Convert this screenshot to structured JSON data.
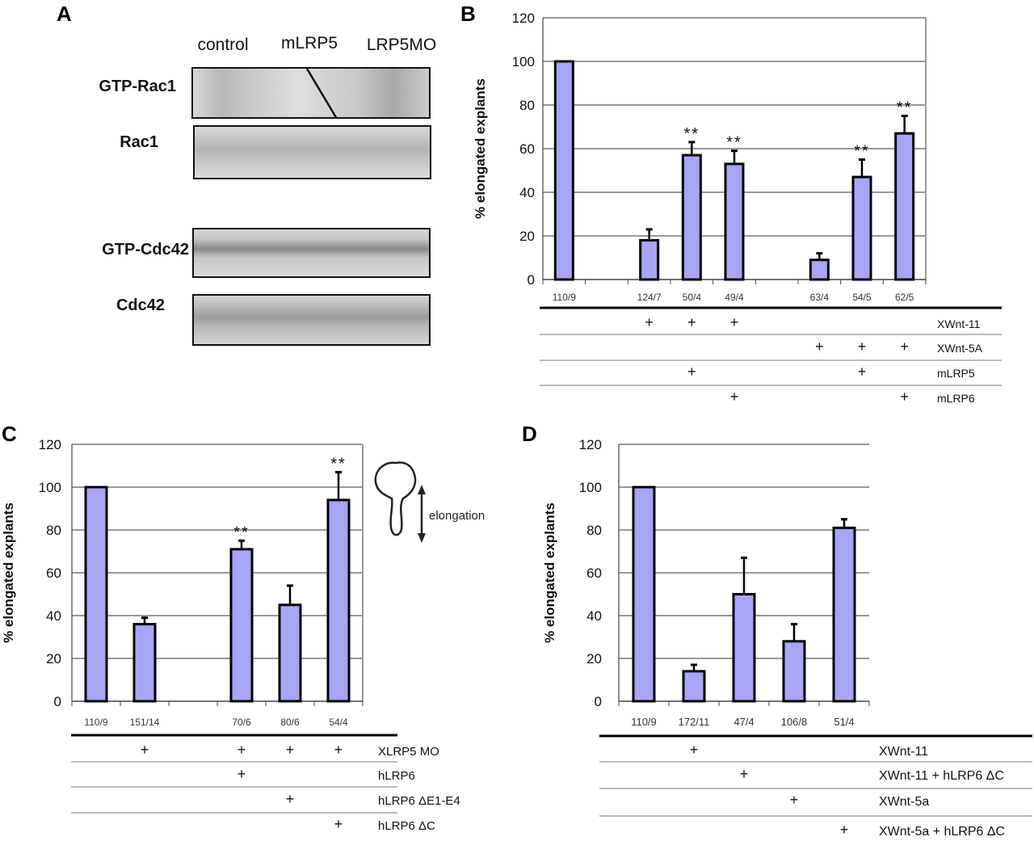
{
  "panels": {
    "a": "A",
    "b": "B",
    "c": "C",
    "d": "D"
  },
  "blot": {
    "columns": [
      "control",
      "mLRP5",
      "LRP5MO"
    ],
    "rows": [
      "GTP-Rac1",
      "Rac1",
      "GTP-Cdc42",
      "Cdc42"
    ]
  },
  "schematic": {
    "label": "elongation"
  },
  "colors": {
    "bar_fill": "#a6a6f5",
    "bar_stroke": "#000000",
    "grid": "#333333",
    "frame": "#999999",
    "table_rule": "#000000",
    "table_sep": "#bbbbbb"
  },
  "chart_data": [
    {
      "panel": "B",
      "type": "bar",
      "ylabel": "% elongated explants",
      "ylim": [
        0,
        120
      ],
      "yticks": [
        "0",
        "20",
        "40",
        "60",
        "80",
        "100",
        "120"
      ],
      "grid": true,
      "categories": [
        "110/9",
        "124/7",
        "50/4",
        "49/4",
        "63/4",
        "54/5",
        "62/5"
      ],
      "values": [
        100,
        18,
        57,
        53,
        9,
        47,
        67
      ],
      "error_plus": [
        0,
        5,
        6,
        6,
        3,
        8,
        8
      ],
      "significance": [
        "",
        "",
        "**",
        "**",
        "",
        "**",
        "**"
      ],
      "conditions": [
        {
          "label": "XWnt-11",
          "marks": [
            false,
            true,
            true,
            true,
            false,
            false,
            false
          ]
        },
        {
          "label": "XWnt-5A",
          "marks": [
            false,
            false,
            false,
            false,
            true,
            true,
            true
          ]
        },
        {
          "label": "mLRP5",
          "marks": [
            false,
            false,
            true,
            false,
            false,
            true,
            false
          ]
        },
        {
          "label": "mLRP6",
          "marks": [
            false,
            false,
            false,
            true,
            false,
            false,
            true
          ]
        }
      ],
      "mark_symbol": "+"
    },
    {
      "panel": "C",
      "type": "bar",
      "ylabel": "% elongated explants",
      "ylim": [
        0,
        120
      ],
      "yticks": [
        "0",
        "20",
        "40",
        "60",
        "80",
        "100",
        "120"
      ],
      "grid": true,
      "categories": [
        "110/9",
        "151/14",
        "70/6",
        "80/6",
        "54/4"
      ],
      "values": [
        100,
        36,
        71,
        45,
        94
      ],
      "error_plus": [
        0,
        3,
        4,
        9,
        13
      ],
      "significance": [
        "",
        "",
        "**",
        "",
        "**"
      ],
      "conditions": [
        {
          "label": "XLRP5 MO",
          "marks": [
            false,
            true,
            true,
            true,
            true
          ]
        },
        {
          "label": "hLRP6",
          "marks": [
            false,
            false,
            true,
            false,
            false
          ]
        },
        {
          "label": "hLRP6 ΔE1-E4",
          "marks": [
            false,
            false,
            false,
            true,
            false
          ]
        },
        {
          "label": "hLRP6 ΔC",
          "marks": [
            false,
            false,
            false,
            false,
            true
          ]
        }
      ],
      "mark_symbol": "+"
    },
    {
      "panel": "D",
      "type": "bar",
      "ylabel": "% elongated explants",
      "ylim": [
        0,
        120
      ],
      "yticks": [
        "0",
        "20",
        "40",
        "60",
        "80",
        "100",
        "120"
      ],
      "grid": true,
      "categories": [
        "110/9",
        "172/11",
        "47/4",
        "106/8",
        "51/4"
      ],
      "values": [
        100,
        14,
        50,
        28,
        81
      ],
      "error_plus": [
        0,
        3,
        17,
        8,
        4
      ],
      "significance": [
        "",
        "",
        "",
        "",
        ""
      ],
      "conditions": [
        {
          "label": "XWnt-11",
          "marks": [
            false,
            true,
            false,
            false,
            false
          ]
        },
        {
          "label": "XWnt-11 + hLRP6 ΔC",
          "marks": [
            false,
            false,
            true,
            false,
            false
          ]
        },
        {
          "label": "XWnt-5a",
          "marks": [
            false,
            false,
            false,
            true,
            false
          ]
        },
        {
          "label": "XWnt-5a + hLRP6 ΔC",
          "marks": [
            false,
            false,
            false,
            false,
            true
          ]
        }
      ],
      "mark_symbol": "+"
    }
  ]
}
